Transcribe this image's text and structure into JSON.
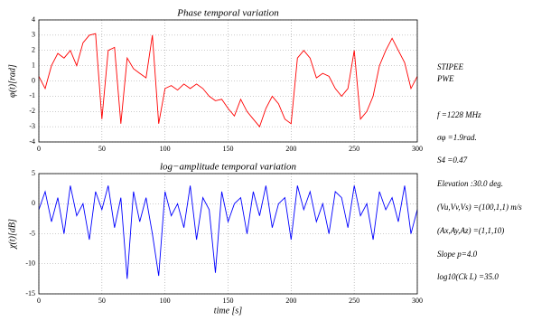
{
  "chart_data": [
    {
      "type": "line",
      "title": "Phase temporal variation",
      "ylabel": "φ(t)[rad]",
      "x": [
        0,
        5,
        10,
        15,
        20,
        25,
        30,
        35,
        40,
        45,
        50,
        55,
        60,
        65,
        70,
        75,
        80,
        85,
        90,
        95,
        100,
        105,
        110,
        115,
        120,
        125,
        130,
        135,
        140,
        145,
        150,
        155,
        160,
        165,
        170,
        175,
        180,
        185,
        190,
        195,
        200,
        205,
        210,
        215,
        220,
        225,
        230,
        235,
        240,
        245,
        250,
        255,
        260,
        265,
        270,
        275,
        280,
        285,
        290,
        295,
        300
      ],
      "series": [
        {
          "name": "phase",
          "color": "#ff0000",
          "values": [
            0.3,
            -0.5,
            1.0,
            1.8,
            1.5,
            2.0,
            1.0,
            2.5,
            3.0,
            3.1,
            -2.5,
            2.0,
            2.2,
            -2.8,
            1.5,
            0.8,
            0.5,
            0.2,
            3.0,
            -2.8,
            -0.5,
            -0.3,
            -0.6,
            -0.2,
            -0.5,
            -0.2,
            -0.5,
            -1.0,
            -1.3,
            -1.2,
            -1.8,
            -2.3,
            -1.2,
            -2.0,
            -2.5,
            -3.0,
            -1.8,
            -1.0,
            -1.5,
            -2.5,
            -2.8,
            1.5,
            2.0,
            1.5,
            0.2,
            0.5,
            0.3,
            -0.5,
            -1.0,
            -0.5,
            2.0,
            -2.5,
            -2.0,
            -1.0,
            1.0,
            2.0,
            2.8,
            2.0,
            1.2,
            -0.5,
            0.3
          ]
        }
      ],
      "xlim": [
        0,
        300
      ],
      "xticks": [
        0,
        50,
        100,
        150,
        200,
        250,
        300
      ],
      "ylim": [
        -4,
        4
      ],
      "yticks": [
        -4,
        -3,
        -2,
        -1,
        0,
        1,
        2,
        3,
        4
      ],
      "grid": true
    },
    {
      "type": "line",
      "title": "log−amplitude temporal variation",
      "ylabel": "χ(t)[dB]",
      "xlabel": "time [s]",
      "x": [
        0,
        5,
        10,
        15,
        20,
        25,
        30,
        35,
        40,
        45,
        50,
        55,
        60,
        65,
        70,
        75,
        80,
        85,
        90,
        95,
        100,
        105,
        110,
        115,
        120,
        125,
        130,
        135,
        140,
        145,
        150,
        155,
        160,
        165,
        170,
        175,
        180,
        185,
        190,
        195,
        200,
        205,
        210,
        215,
        220,
        225,
        230,
        235,
        240,
        245,
        250,
        255,
        260,
        265,
        270,
        275,
        280,
        285,
        290,
        295,
        300
      ],
      "series": [
        {
          "name": "log-amplitude",
          "color": "#0000ff",
          "values": [
            -1,
            2,
            -3,
            1,
            -5,
            3,
            -2,
            0,
            -6,
            2,
            -1,
            3,
            -4,
            1,
            -12.5,
            2,
            -3,
            1,
            -5,
            -12,
            2,
            -2,
            0,
            -4,
            3,
            -6,
            1,
            -1,
            -11.5,
            2,
            -3,
            0,
            1,
            -5,
            2,
            -2,
            3,
            -4,
            0,
            1,
            -6,
            3,
            -1,
            2,
            -3,
            0,
            -5,
            2,
            1,
            -4,
            3,
            -2,
            0,
            -6,
            2,
            -1,
            1,
            -3,
            3,
            -5,
            -1
          ]
        }
      ],
      "xlim": [
        0,
        300
      ],
      "xticks": [
        0,
        50,
        100,
        150,
        200,
        250,
        300
      ],
      "ylim": [
        -15,
        5
      ],
      "yticks": [
        -15,
        -10,
        -5,
        0,
        5
      ],
      "grid": true
    }
  ],
  "side_text": [
    "STIPEE",
    "PWE",
    "f =1228 MHz",
    "σφ =1.9rad.",
    "S4 =0.47",
    "Elevation :30.0 deg.",
    "(Vu,Vv,Vs) =(100,1,1) m/s",
    "(Ax,Ay,Az) =(1,1,10)",
    "Slope p=4.0",
    "log10(Ck L) =35.0"
  ]
}
